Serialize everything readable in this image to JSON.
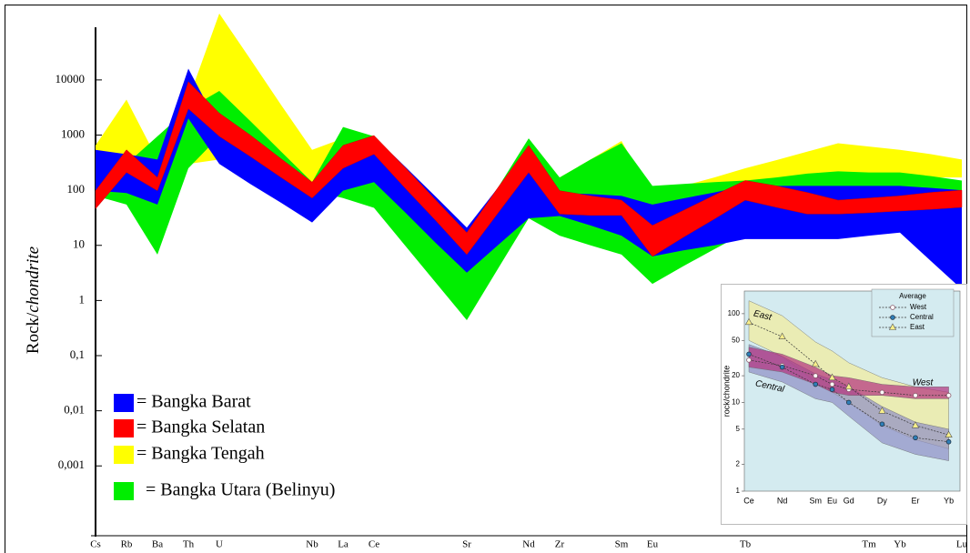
{
  "chart_data": [
    {
      "type": "band",
      "ylabel": [
        "Rock/",
        "chondrite"
      ],
      "log_scale": true,
      "categories": [
        "Cs",
        "Rb",
        "Ba",
        "Th",
        "U",
        null,
        null,
        "Nb",
        "La",
        "Ce",
        null,
        null,
        "Sr",
        null,
        "Nd",
        "Zr",
        null,
        "Sm",
        "Eu",
        null,
        null,
        "Tb",
        null,
        null,
        null,
        "Tm",
        "Yb",
        null,
        "Lu"
      ],
      "ylim": [
        4e-05,
        200000
      ],
      "yticks": [
        10000,
        1000,
        100,
        10,
        1,
        {
          "value": 0.1,
          "label": "0,1"
        },
        {
          "value": 0.01,
          "label": "0,01"
        },
        {
          "value": 0.001,
          "label": "0,001"
        }
      ],
      "series": [
        {
          "name": "= Bangka Barat",
          "color": "#0000ff",
          "upper": [
            540,
            450,
            360,
            16000,
            1400,
            660,
            310,
            140,
            650,
            950,
            270,
            76,
            21,
            110,
            540,
            89,
            85,
            79,
            55,
            71,
            91,
            120,
            120,
            120,
            120,
            120,
            120,
            110,
            100
          ],
          "lower": [
            98,
            89,
            55,
            2000,
            300,
            130,
            59,
            26,
            98,
            140,
            40,
            11,
            3.2,
            10,
            31,
            34,
            23,
            15,
            6.3,
            8.1,
            10,
            13,
            13,
            13,
            13,
            15,
            17,
            5.2,
            1.6
          ]
        },
        {
          "name": "= Bangka Selatan",
          "color": "#ff0000",
          "upper": [
            98,
            540,
            170,
            9300,
            2500,
            1000,
            370,
            140,
            650,
            980,
            260,
            66,
            17,
            110,
            650,
            98,
            79,
            66,
            23,
            43,
            81,
            150,
            120,
            91,
            66,
            72,
            79,
            91,
            100
          ],
          "lower": [
            46,
            210,
            98,
            3000,
            950,
            410,
            170,
            72,
            250,
            450,
            110,
            28,
            6.8,
            38,
            210,
            37,
            35,
            35,
            6.3,
            14,
            30,
            66,
            49,
            37,
            37,
            39,
            42,
            45,
            49
          ]
        },
        {
          "name": "= Bangka Tengah",
          "color": "#ffff00",
          "upper": [
            650,
            4400,
            360,
            4400,
            160000,
            24000,
            3500,
            540,
            870,
            980,
            240,
            59,
            14,
            89,
            540,
            170,
            360,
            780,
            79,
            120,
            170,
            250,
            350,
            500,
            710,
            620,
            540,
            450,
            360
          ],
          "lower": [
            250,
            140,
            26,
            300,
            360,
            250,
            170,
            120,
            540,
            650,
            110,
            19,
            3.2,
            21,
            140,
            98,
            79,
            66,
            46,
            66,
            98,
            140,
            160,
            190,
            210,
            190,
            170,
            170,
            170
          ]
        },
        {
          "name": "= Bangka Utara (Belinyu)",
          "color": "#00ee00",
          "upper": [
            140,
            300,
            950,
            3000,
            6300,
            1800,
            500,
            140,
            1400,
            950,
            230,
            59,
            14,
            110,
            870,
            170,
            360,
            710,
            120,
            130,
            140,
            150,
            170,
            200,
            220,
            210,
            210,
            180,
            150
          ],
          "lower": [
            79,
            55,
            6.8,
            250,
            950,
            450,
            210,
            98,
            72,
            48,
            10,
            2.1,
            0.44,
            3.7,
            31,
            15,
            10,
            6.8,
            2,
            4.2,
            8.5,
            17,
            19,
            20,
            21,
            22,
            23,
            47,
            98
          ]
        }
      ]
    },
    {
      "type": "line",
      "ylabel": "rock/chondrite",
      "log_scale": true,
      "categories": [
        "Ce",
        "Nd",
        "Sm",
        "Eu",
        "Gd",
        "Dy",
        "Er",
        "Yb"
      ],
      "ylim": [
        1,
        180
      ],
      "yticks": [
        1,
        2,
        5,
        10,
        20,
        50,
        100
      ],
      "legend_title": "Average",
      "bands": [
        {
          "color": "#f3ec9a",
          "upper": [
            140,
            95,
            48,
            38,
            28,
            19,
            15,
            13
          ],
          "lower": [
            50,
            33,
            17,
            13,
            10,
            5.5,
            3.8,
            3.0
          ]
        },
        {
          "color": "#8f8fc4",
          "upper": [
            45,
            33,
            21,
            18,
            15,
            9,
            6,
            5
          ],
          "lower": [
            22,
            17,
            11,
            10,
            7,
            3.5,
            2.6,
            2.2
          ]
        },
        {
          "color": "#b3307e",
          "upper": [
            42,
            35,
            25,
            20,
            19,
            16,
            15,
            15
          ],
          "lower": [
            25,
            22,
            16,
            13,
            12,
            12,
            11,
            11
          ]
        }
      ],
      "series": [
        {
          "name": "West",
          "color": "#8a5a6a",
          "marker": "open-circle",
          "values": [
            30,
            26,
            20,
            16,
            14,
            13,
            12,
            12
          ]
        },
        {
          "name": "Central",
          "color": "#2f7fb8",
          "marker": "circle",
          "values": [
            35,
            25,
            16,
            14,
            10,
            5.7,
            4,
            3.6
          ]
        },
        {
          "name": "East",
          "color": "#e9dc4c",
          "marker": "triangle",
          "values": [
            80,
            55,
            27,
            19,
            15,
            8,
            5.5,
            4.3
          ]
        }
      ],
      "annotations": [
        "East",
        "Central",
        "West"
      ]
    }
  ]
}
